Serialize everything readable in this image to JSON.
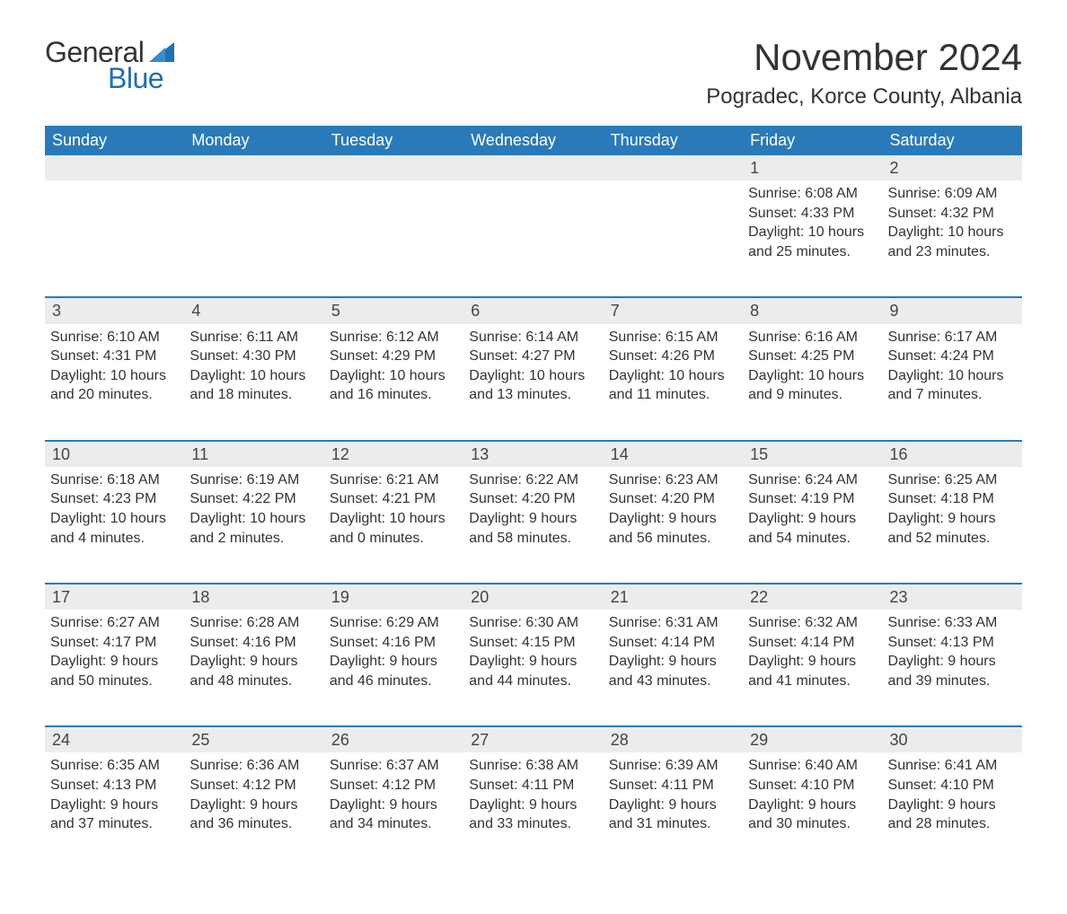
{
  "logo": {
    "general": "General",
    "blue": "Blue"
  },
  "title": "November 2024",
  "location": "Pogradec, Korce County, Albania",
  "colors": {
    "header_bg": "#2a7ab9",
    "header_text": "#ffffff",
    "row_bg": "#ececec",
    "row_border": "#2a7ab9",
    "body_text": "#333333",
    "logo_blue": "#1f6fb2"
  },
  "columns": [
    "Sunday",
    "Monday",
    "Tuesday",
    "Wednesday",
    "Thursday",
    "Friday",
    "Saturday"
  ],
  "weeks": [
    [
      null,
      null,
      null,
      null,
      null,
      {
        "n": "1",
        "sunrise": "6:08 AM",
        "sunset": "4:33 PM",
        "daylight": "10 hours and 25 minutes."
      },
      {
        "n": "2",
        "sunrise": "6:09 AM",
        "sunset": "4:32 PM",
        "daylight": "10 hours and 23 minutes."
      }
    ],
    [
      {
        "n": "3",
        "sunrise": "6:10 AM",
        "sunset": "4:31 PM",
        "daylight": "10 hours and 20 minutes."
      },
      {
        "n": "4",
        "sunrise": "6:11 AM",
        "sunset": "4:30 PM",
        "daylight": "10 hours and 18 minutes."
      },
      {
        "n": "5",
        "sunrise": "6:12 AM",
        "sunset": "4:29 PM",
        "daylight": "10 hours and 16 minutes."
      },
      {
        "n": "6",
        "sunrise": "6:14 AM",
        "sunset": "4:27 PM",
        "daylight": "10 hours and 13 minutes."
      },
      {
        "n": "7",
        "sunrise": "6:15 AM",
        "sunset": "4:26 PM",
        "daylight": "10 hours and 11 minutes."
      },
      {
        "n": "8",
        "sunrise": "6:16 AM",
        "sunset": "4:25 PM",
        "daylight": "10 hours and 9 minutes."
      },
      {
        "n": "9",
        "sunrise": "6:17 AM",
        "sunset": "4:24 PM",
        "daylight": "10 hours and 7 minutes."
      }
    ],
    [
      {
        "n": "10",
        "sunrise": "6:18 AM",
        "sunset": "4:23 PM",
        "daylight": "10 hours and 4 minutes."
      },
      {
        "n": "11",
        "sunrise": "6:19 AM",
        "sunset": "4:22 PM",
        "daylight": "10 hours and 2 minutes."
      },
      {
        "n": "12",
        "sunrise": "6:21 AM",
        "sunset": "4:21 PM",
        "daylight": "10 hours and 0 minutes."
      },
      {
        "n": "13",
        "sunrise": "6:22 AM",
        "sunset": "4:20 PM",
        "daylight": "9 hours and 58 minutes."
      },
      {
        "n": "14",
        "sunrise": "6:23 AM",
        "sunset": "4:20 PM",
        "daylight": "9 hours and 56 minutes."
      },
      {
        "n": "15",
        "sunrise": "6:24 AM",
        "sunset": "4:19 PM",
        "daylight": "9 hours and 54 minutes."
      },
      {
        "n": "16",
        "sunrise": "6:25 AM",
        "sunset": "4:18 PM",
        "daylight": "9 hours and 52 minutes."
      }
    ],
    [
      {
        "n": "17",
        "sunrise": "6:27 AM",
        "sunset": "4:17 PM",
        "daylight": "9 hours and 50 minutes."
      },
      {
        "n": "18",
        "sunrise": "6:28 AM",
        "sunset": "4:16 PM",
        "daylight": "9 hours and 48 minutes."
      },
      {
        "n": "19",
        "sunrise": "6:29 AM",
        "sunset": "4:16 PM",
        "daylight": "9 hours and 46 minutes."
      },
      {
        "n": "20",
        "sunrise": "6:30 AM",
        "sunset": "4:15 PM",
        "daylight": "9 hours and 44 minutes."
      },
      {
        "n": "21",
        "sunrise": "6:31 AM",
        "sunset": "4:14 PM",
        "daylight": "9 hours and 43 minutes."
      },
      {
        "n": "22",
        "sunrise": "6:32 AM",
        "sunset": "4:14 PM",
        "daylight": "9 hours and 41 minutes."
      },
      {
        "n": "23",
        "sunrise": "6:33 AM",
        "sunset": "4:13 PM",
        "daylight": "9 hours and 39 minutes."
      }
    ],
    [
      {
        "n": "24",
        "sunrise": "6:35 AM",
        "sunset": "4:13 PM",
        "daylight": "9 hours and 37 minutes."
      },
      {
        "n": "25",
        "sunrise": "6:36 AM",
        "sunset": "4:12 PM",
        "daylight": "9 hours and 36 minutes."
      },
      {
        "n": "26",
        "sunrise": "6:37 AM",
        "sunset": "4:12 PM",
        "daylight": "9 hours and 34 minutes."
      },
      {
        "n": "27",
        "sunrise": "6:38 AM",
        "sunset": "4:11 PM",
        "daylight": "9 hours and 33 minutes."
      },
      {
        "n": "28",
        "sunrise": "6:39 AM",
        "sunset": "4:11 PM",
        "daylight": "9 hours and 31 minutes."
      },
      {
        "n": "29",
        "sunrise": "6:40 AM",
        "sunset": "4:10 PM",
        "daylight": "9 hours and 30 minutes."
      },
      {
        "n": "30",
        "sunrise": "6:41 AM",
        "sunset": "4:10 PM",
        "daylight": "9 hours and 28 minutes."
      }
    ]
  ],
  "labels": {
    "sunrise": "Sunrise:",
    "sunset": "Sunset:",
    "daylight": "Daylight:"
  }
}
